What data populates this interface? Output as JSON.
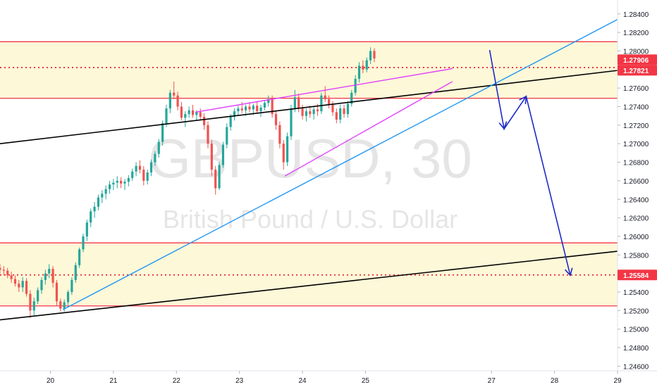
{
  "chart_data": {
    "type": "candlestick",
    "symbol_watermark": "GBPUSD, 30",
    "description_watermark": "British Pound / U.S. Dollar",
    "ylim": [
      1.2455,
      1.2855
    ],
    "x_range": [
      19.2,
      29
    ],
    "y_ticks": [
      "1.28400",
      "1.28200",
      "1.28000",
      "1.27600",
      "1.27400",
      "1.27200",
      "1.27000",
      "1.26800",
      "1.26600",
      "1.26400",
      "1.26200",
      "1.26000",
      "1.25800",
      "1.25400",
      "1.25200",
      "1.25000",
      "1.24800",
      "1.24600"
    ],
    "x_ticks": [
      {
        "x": 20,
        "label": "20"
      },
      {
        "x": 21,
        "label": "21"
      },
      {
        "x": 22,
        "label": "22"
      },
      {
        "x": 23,
        "label": "23"
      },
      {
        "x": 24,
        "label": "24"
      },
      {
        "x": 25,
        "label": "25"
      },
      {
        "x": 27,
        "label": "27"
      },
      {
        "x": 28,
        "label": "28"
      },
      {
        "x": 29,
        "label": "29"
      }
    ],
    "price_labels": [
      {
        "value": 1.27906,
        "label": "1.27906"
      },
      {
        "value": 1.27821,
        "label": "1.27821"
      },
      {
        "value": 1.25584,
        "label": "1.25584"
      }
    ],
    "zones": [
      {
        "top": 1.281,
        "bottom": 1.2749,
        "color": "#fdf8d8"
      },
      {
        "top": 1.2593,
        "bottom": 1.2525,
        "color": "#fdf8d8"
      }
    ],
    "zone_boundary_lines": [
      1.281,
      1.2749,
      1.2593,
      1.2525
    ],
    "dotted_levels": [
      1.27821,
      1.25584
    ],
    "trend_lines": [
      {
        "color": "#000000",
        "from": [
          19.2,
          1.27
        ],
        "to": [
          29,
          1.2779
        ]
      },
      {
        "color": "#000000",
        "from": [
          19.2,
          1.251
        ],
        "to": [
          29,
          1.2584
        ]
      },
      {
        "color": "#2196f3",
        "from": [
          20.2,
          1.2521
        ],
        "to": [
          29,
          1.2834
        ]
      },
      {
        "color": "#e040fb",
        "from": [
          22.3,
          1.2734
        ],
        "to": [
          26.38,
          1.2781
        ]
      },
      {
        "color": "#e040fb",
        "from": [
          23.72,
          1.2665
        ],
        "to": [
          26.38,
          1.2767
        ]
      }
    ],
    "projection_path": [
      [
        26.97,
        1.2801
      ],
      [
        27.2,
        1.2716
      ],
      [
        27.55,
        1.2751
      ],
      [
        28.25,
        1.2558
      ]
    ],
    "ohlc": [
      [
        19.2,
        1.2566,
        1.257,
        1.256,
        1.2564
      ],
      [
        19.26,
        1.2564,
        1.2568,
        1.2558,
        1.2563
      ],
      [
        19.32,
        1.2563,
        1.2566,
        1.2555,
        1.2558
      ],
      [
        19.38,
        1.2558,
        1.2562,
        1.255,
        1.2554
      ],
      [
        19.44,
        1.2554,
        1.2558,
        1.2546,
        1.2549
      ],
      [
        19.5,
        1.2549,
        1.2553,
        1.254,
        1.2545
      ],
      [
        19.56,
        1.2545,
        1.2556,
        1.254,
        1.2552
      ],
      [
        19.62,
        1.2552,
        1.2555,
        1.2535,
        1.2538
      ],
      [
        19.68,
        1.2538,
        1.2542,
        1.2512,
        1.252
      ],
      [
        19.74,
        1.252,
        1.2534,
        1.2515,
        1.253
      ],
      [
        19.8,
        1.253,
        1.2545,
        1.2527,
        1.2542
      ],
      [
        19.86,
        1.2542,
        1.2556,
        1.2538,
        1.2553
      ],
      [
        19.92,
        1.2553,
        1.2564,
        1.2548,
        1.256
      ],
      [
        19.98,
        1.256,
        1.257,
        1.2555,
        1.2565
      ],
      [
        20.04,
        1.2565,
        1.2568,
        1.2545,
        1.255
      ],
      [
        20.1,
        1.255,
        1.2553,
        1.2525,
        1.253
      ],
      [
        20.16,
        1.253,
        1.2533,
        1.2519,
        1.2522
      ],
      [
        20.22,
        1.2522,
        1.2532,
        1.2519,
        1.2529
      ],
      [
        20.28,
        1.2529,
        1.2542,
        1.2526,
        1.254
      ],
      [
        20.34,
        1.254,
        1.2556,
        1.2537,
        1.2553
      ],
      [
        20.4,
        1.2553,
        1.2572,
        1.255,
        1.2569
      ],
      [
        20.46,
        1.2569,
        1.2588,
        1.2566,
        1.2586
      ],
      [
        20.52,
        1.2586,
        1.2603,
        1.2583,
        1.26
      ],
      [
        20.58,
        1.26,
        1.2618,
        1.2595,
        1.2615
      ],
      [
        20.64,
        1.2615,
        1.263,
        1.261,
        1.2627
      ],
      [
        20.7,
        1.2627,
        1.2637,
        1.262,
        1.2632
      ],
      [
        20.76,
        1.2632,
        1.2645,
        1.2628,
        1.2642
      ],
      [
        20.82,
        1.2642,
        1.265,
        1.2636,
        1.2646
      ],
      [
        20.88,
        1.2646,
        1.2655,
        1.264,
        1.2651
      ],
      [
        20.94,
        1.2651,
        1.266,
        1.2646,
        1.2656
      ],
      [
        21.0,
        1.2656,
        1.2662,
        1.265,
        1.2658
      ],
      [
        21.06,
        1.2658,
        1.2665,
        1.2652,
        1.266
      ],
      [
        21.12,
        1.266,
        1.2664,
        1.2652,
        1.2657
      ],
      [
        21.18,
        1.2657,
        1.2662,
        1.265,
        1.2659
      ],
      [
        21.24,
        1.2659,
        1.2666,
        1.2654,
        1.2663
      ],
      [
        21.3,
        1.2663,
        1.2673,
        1.266,
        1.267
      ],
      [
        21.36,
        1.267,
        1.268,
        1.2665,
        1.2676
      ],
      [
        21.42,
        1.2676,
        1.2682,
        1.2668,
        1.2672
      ],
      [
        21.48,
        1.2672,
        1.2676,
        1.2655,
        1.266
      ],
      [
        21.54,
        1.266,
        1.2672,
        1.2656,
        1.2669
      ],
      [
        21.6,
        1.2669,
        1.2683,
        1.2665,
        1.268
      ],
      [
        21.66,
        1.268,
        1.2692,
        1.2676,
        1.2689
      ],
      [
        21.72,
        1.2689,
        1.2705,
        1.2685,
        1.2702
      ],
      [
        21.78,
        1.2702,
        1.2725,
        1.2698,
        1.2722
      ],
      [
        21.84,
        1.2722,
        1.2742,
        1.2718,
        1.2738
      ],
      [
        21.9,
        1.2738,
        1.2758,
        1.2733,
        1.2755
      ],
      [
        21.96,
        1.2755,
        1.2767,
        1.2748,
        1.2752
      ],
      [
        22.02,
        1.2752,
        1.2756,
        1.2736,
        1.274
      ],
      [
        22.08,
        1.274,
        1.2745,
        1.2725,
        1.2728
      ],
      [
        22.14,
        1.2728,
        1.2735,
        1.2718,
        1.2732
      ],
      [
        22.2,
        1.2732,
        1.274,
        1.2728,
        1.2736
      ],
      [
        22.26,
        1.2736,
        1.2742,
        1.2728,
        1.2731
      ],
      [
        22.32,
        1.2731,
        1.2736,
        1.2725,
        1.2734
      ],
      [
        22.38,
        1.2734,
        1.2738,
        1.2726,
        1.2729
      ],
      [
        22.44,
        1.2729,
        1.2733,
        1.2715,
        1.272
      ],
      [
        22.5,
        1.272,
        1.2724,
        1.2695,
        1.27
      ],
      [
        22.56,
        1.27,
        1.2704,
        1.2665,
        1.2672
      ],
      [
        22.62,
        1.2672,
        1.2676,
        1.2645,
        1.2652
      ],
      [
        22.68,
        1.2652,
        1.268,
        1.265,
        1.2677
      ],
      [
        22.74,
        1.2677,
        1.2702,
        1.2674,
        1.2699
      ],
      [
        22.8,
        1.2699,
        1.2722,
        1.2695,
        1.2718
      ],
      [
        22.86,
        1.2718,
        1.2732,
        1.2714,
        1.2729
      ],
      [
        22.92,
        1.2729,
        1.2738,
        1.2725,
        1.2735
      ],
      [
        22.98,
        1.2735,
        1.2741,
        1.273,
        1.2738
      ],
      [
        23.04,
        1.2738,
        1.2745,
        1.2733,
        1.2736
      ],
      [
        23.1,
        1.2736,
        1.2742,
        1.273,
        1.274
      ],
      [
        23.16,
        1.274,
        1.2745,
        1.2734,
        1.2737
      ],
      [
        23.22,
        1.2737,
        1.2743,
        1.2731,
        1.2741
      ],
      [
        23.28,
        1.2741,
        1.2746,
        1.2733,
        1.2735
      ],
      [
        23.34,
        1.2735,
        1.2742,
        1.2729,
        1.2739
      ],
      [
        23.4,
        1.2739,
        1.2746,
        1.2736,
        1.2744
      ],
      [
        23.46,
        1.2744,
        1.2752,
        1.274,
        1.2748
      ],
      [
        23.52,
        1.2748,
        1.2752,
        1.2728,
        1.2732
      ],
      [
        23.58,
        1.2732,
        1.2736,
        1.2715,
        1.272
      ],
      [
        23.64,
        1.272,
        1.2724,
        1.2695,
        1.27
      ],
      [
        23.7,
        1.27,
        1.2704,
        1.2672,
        1.268
      ],
      [
        23.76,
        1.268,
        1.2712,
        1.2676,
        1.2708
      ],
      [
        23.82,
        1.2708,
        1.2742,
        1.2704,
        1.2738
      ],
      [
        23.88,
        1.2738,
        1.2758,
        1.2734,
        1.275
      ],
      [
        23.94,
        1.275,
        1.2754,
        1.2734,
        1.2738
      ],
      [
        24.0,
        1.2738,
        1.2742,
        1.2726,
        1.273
      ],
      [
        24.06,
        1.273,
        1.2738,
        1.2724,
        1.2735
      ],
      [
        24.12,
        1.2735,
        1.2741,
        1.2728,
        1.2732
      ],
      [
        24.18,
        1.2732,
        1.274,
        1.2726,
        1.2737
      ],
      [
        24.24,
        1.2737,
        1.2743,
        1.273,
        1.2735
      ],
      [
        24.3,
        1.2735,
        1.2755,
        1.2732,
        1.2752
      ],
      [
        24.36,
        1.2752,
        1.2762,
        1.2745,
        1.2748
      ],
      [
        24.42,
        1.2748,
        1.2752,
        1.2738,
        1.2742
      ],
      [
        24.48,
        1.2742,
        1.2746,
        1.273,
        1.2734
      ],
      [
        24.54,
        1.2734,
        1.2738,
        1.2722,
        1.2726
      ],
      [
        24.6,
        1.2726,
        1.2742,
        1.2722,
        1.2738
      ],
      [
        24.66,
        1.2738,
        1.2742,
        1.2728,
        1.2732
      ],
      [
        24.72,
        1.2732,
        1.2746,
        1.2728,
        1.2743
      ],
      [
        24.78,
        1.2743,
        1.2758,
        1.274,
        1.2755
      ],
      [
        24.84,
        1.2755,
        1.2774,
        1.2752,
        1.277
      ],
      [
        24.9,
        1.277,
        1.2788,
        1.2766,
        1.2784
      ],
      [
        24.96,
        1.2784,
        1.279,
        1.2776,
        1.278
      ],
      [
        25.02,
        1.278,
        1.2793,
        1.2777,
        1.279
      ],
      [
        25.08,
        1.279,
        1.2804,
        1.2786,
        1.28
      ],
      [
        25.14,
        1.28,
        1.2803,
        1.2788,
        1.2792
      ]
    ]
  }
}
